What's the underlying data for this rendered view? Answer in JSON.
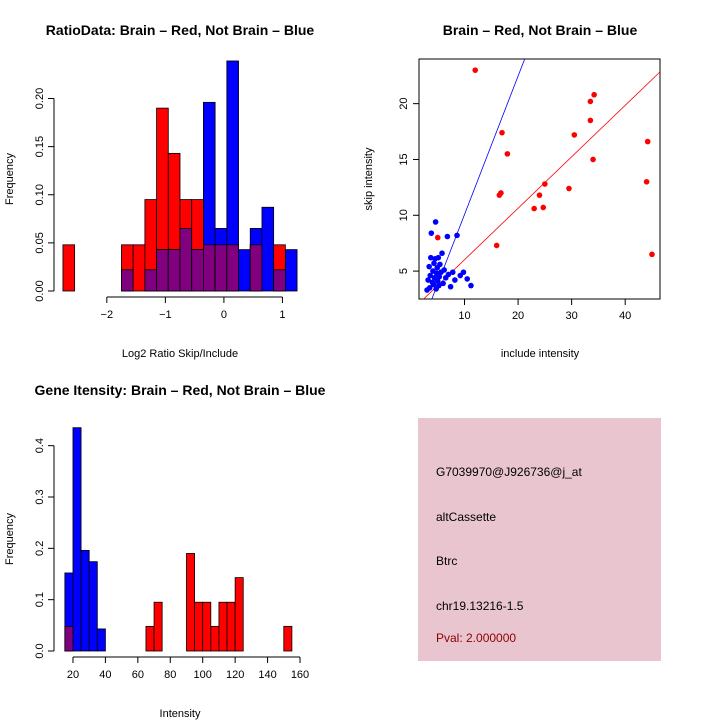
{
  "colors": {
    "brain": "#ff0000",
    "not_brain": "#0000ff",
    "overlap": "#800080",
    "info_bg": "#e9c6cf",
    "pval": "#8b0000"
  },
  "chart_data": [
    {
      "id": "ratio",
      "type": "bar",
      "title": "RatioData: Brain – Red, Not Brain – Blue",
      "xlabel": "Log2 Ratio Skip/Include",
      "ylabel": "Frequency",
      "xlim": [
        -2.8,
        1.3
      ],
      "ylim": [
        0,
        0.24
      ],
      "xticks": [
        -2,
        -1,
        0,
        1
      ],
      "yticks": [
        0.0,
        0.05,
        0.1,
        0.15,
        0.2
      ],
      "ytick_labels": [
        "0.00",
        "0.05",
        "0.10",
        "0.15",
        "0.20"
      ],
      "bin_starts": [
        -2.75,
        -2.55,
        -2.35,
        -2.15,
        -1.95,
        -1.75,
        -1.55,
        -1.35,
        -1.15,
        -0.95,
        -0.75,
        -0.55,
        -0.35,
        -0.15,
        0.05,
        0.25,
        0.45,
        0.65,
        0.85,
        1.05
      ],
      "bin_width": 0.2,
      "series": [
        {
          "name": "Brain",
          "color": "red",
          "values": [
            0.048,
            0,
            0,
            0,
            0,
            0.048,
            0.048,
            0.095,
            0.19,
            0.143,
            0.095,
            0.095,
            0.048,
            0.048,
            0.048,
            0,
            0.048,
            0,
            0.048,
            0
          ]
        },
        {
          "name": "Not Brain",
          "color": "blue",
          "values": [
            0,
            0,
            0,
            0,
            0,
            0.022,
            0,
            0.022,
            0.043,
            0.043,
            0.065,
            0.043,
            0.196,
            0.065,
            0.239,
            0.043,
            0.065,
            0.087,
            0.022,
            0.043
          ]
        }
      ]
    },
    {
      "id": "scatter",
      "type": "scatter",
      "title": "Brain – Red, Not Brain – Blue",
      "xlabel": "include intensity",
      "ylabel": "skip intensity",
      "xlim": [
        1.5,
        46.5
      ],
      "ylim": [
        2.5,
        24
      ],
      "xticks": [
        10,
        20,
        30,
        40
      ],
      "yticks": [
        5,
        10,
        15,
        20
      ],
      "lines": [
        {
          "name": "brain-fit",
          "color": "red",
          "slope": 0.461,
          "intercept": 1.41
        },
        {
          "name": "not-brain-fit",
          "color": "blue",
          "slope": 1.24,
          "intercept": -2.33
        }
      ],
      "series": [
        {
          "name": "Brain",
          "color": "red",
          "points": [
            [
              12,
              23
            ],
            [
              17,
              17.4
            ],
            [
              18,
              15.5
            ],
            [
              16.5,
              11.8
            ],
            [
              16.8,
              12
            ],
            [
              16,
              7.3
            ],
            [
              23,
              10.6
            ],
            [
              24,
              11.8
            ],
            [
              25,
              12.8
            ],
            [
              24.7,
              10.7
            ],
            [
              29.5,
              12.4
            ],
            [
              30.5,
              17.2
            ],
            [
              33.5,
              18.5
            ],
            [
              33.5,
              20.2
            ],
            [
              34.2,
              20.8
            ],
            [
              34,
              15
            ],
            [
              44.2,
              16.6
            ],
            [
              44,
              13
            ],
            [
              45,
              6.5
            ],
            [
              5,
              8
            ]
          ]
        },
        {
          "name": "Not Brain",
          "color": "blue",
          "points": [
            [
              3,
              3.3
            ],
            [
              3.2,
              4.2
            ],
            [
              3.4,
              5.4
            ],
            [
              3.5,
              3.5
            ],
            [
              3.6,
              4.6
            ],
            [
              3.7,
              6.2
            ],
            [
              3.8,
              8.4
            ],
            [
              4,
              4
            ],
            [
              4.1,
              5
            ],
            [
              4.2,
              3.8
            ],
            [
              4.3,
              5.7
            ],
            [
              4.4,
              4.4
            ],
            [
              4.5,
              6.1
            ],
            [
              4.6,
              9.4
            ],
            [
              4.7,
              3.4
            ],
            [
              4.8,
              4.8
            ],
            [
              4.9,
              5.3
            ],
            [
              5,
              4.1
            ],
            [
              5.1,
              6.2
            ],
            [
              5.2,
              3.7
            ],
            [
              5.3,
              4.5
            ],
            [
              5.4,
              5.6
            ],
            [
              5.6,
              4.9
            ],
            [
              5.8,
              6.6
            ],
            [
              6,
              3.9
            ],
            [
              6.2,
              5.1
            ],
            [
              6.5,
              4.4
            ],
            [
              6.8,
              8.1
            ],
            [
              7,
              4.7
            ],
            [
              7.4,
              3.6
            ],
            [
              7.8,
              4.9
            ],
            [
              8.2,
              4.2
            ],
            [
              8.6,
              8.2
            ],
            [
              9.2,
              4.6
            ],
            [
              9.8,
              4.9
            ],
            [
              10.5,
              4.3
            ],
            [
              11.2,
              3.7
            ]
          ]
        }
      ]
    },
    {
      "id": "gene",
      "type": "bar",
      "title": "Gene Itensity: Brain – Red, Not Brain – Blue",
      "xlabel": "Intensity",
      "ylabel": "Frequency",
      "xlim": [
        12,
        160
      ],
      "ylim": [
        0,
        0.45
      ],
      "xticks": [
        20,
        40,
        60,
        80,
        100,
        120,
        140,
        160
      ],
      "yticks": [
        0.0,
        0.1,
        0.2,
        0.3,
        0.4
      ],
      "ytick_labels": [
        "0.0",
        "0.1",
        "0.2",
        "0.3",
        "0.4"
      ],
      "bin_starts": [
        15,
        20,
        25,
        30,
        35,
        40,
        45,
        50,
        55,
        60,
        65,
        70,
        75,
        80,
        85,
        90,
        95,
        100,
        105,
        110,
        115,
        120,
        125,
        130,
        135,
        140,
        145,
        150
      ],
      "bin_width": 5,
      "series": [
        {
          "name": "Brain",
          "color": "red",
          "values": [
            0.048,
            0,
            0,
            0,
            0,
            0,
            0,
            0,
            0,
            0,
            0.048,
            0.095,
            0,
            0,
            0,
            0.19,
            0.095,
            0.095,
            0.048,
            0.095,
            0.095,
            0.143,
            0,
            0,
            0,
            0,
            0,
            0.048
          ]
        },
        {
          "name": "Not Brain",
          "color": "blue",
          "values": [
            0.152,
            0.435,
            0.196,
            0.174,
            0.043,
            0,
            0,
            0,
            0,
            0,
            0,
            0,
            0,
            0,
            0,
            0,
            0,
            0,
            0,
            0,
            0,
            0,
            0,
            0,
            0,
            0,
            0,
            0
          ]
        }
      ]
    }
  ],
  "info": {
    "probe_id": "G7039970@J926736@j_at",
    "event_type": "altCassette",
    "gene": "Btrc",
    "location": "chr19.13216-1.5",
    "pval": "Pval: 2.000000"
  }
}
